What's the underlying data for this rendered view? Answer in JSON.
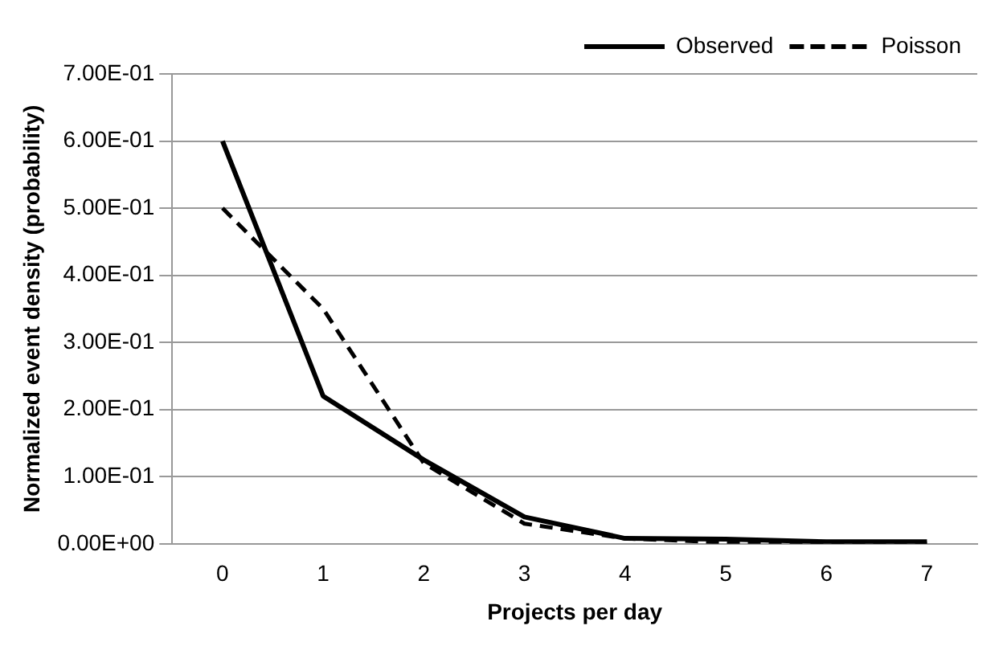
{
  "chart_data": {
    "type": "line",
    "xlabel": "Projects per day",
    "ylabel": "Normalized event density (probability)",
    "categories": [
      "0",
      "1",
      "2",
      "3",
      "4",
      "5",
      "6",
      "7"
    ],
    "series": [
      {
        "name": "Observed",
        "color": "#000000",
        "line_style": "solid",
        "values": [
          0.6,
          0.22,
          0.125,
          0.04,
          0.008,
          0.007,
          0.003,
          0.003
        ]
      },
      {
        "name": "Poisson",
        "color": "#000000",
        "line_style": "dashed",
        "values": [
          0.5,
          0.35,
          0.12,
          0.03,
          0.008,
          0.002,
          0,
          0
        ]
      }
    ],
    "ylim": [
      0,
      0.7
    ],
    "yticks": [
      {
        "value": 0,
        "label": "0.00E+00"
      },
      {
        "value": 0.1,
        "label": "1.00E-01"
      },
      {
        "value": 0.2,
        "label": "2.00E-01"
      },
      {
        "value": 0.3,
        "label": "3.00E-01"
      },
      {
        "value": 0.4,
        "label": "4.00E-01"
      },
      {
        "value": 0.5,
        "label": "5.00E-01"
      },
      {
        "value": 0.6,
        "label": "6.00E-01"
      },
      {
        "value": 0.7,
        "label": "7.00E-01"
      }
    ],
    "grid": "y",
    "legend": "top right",
    "marker": "none"
  }
}
